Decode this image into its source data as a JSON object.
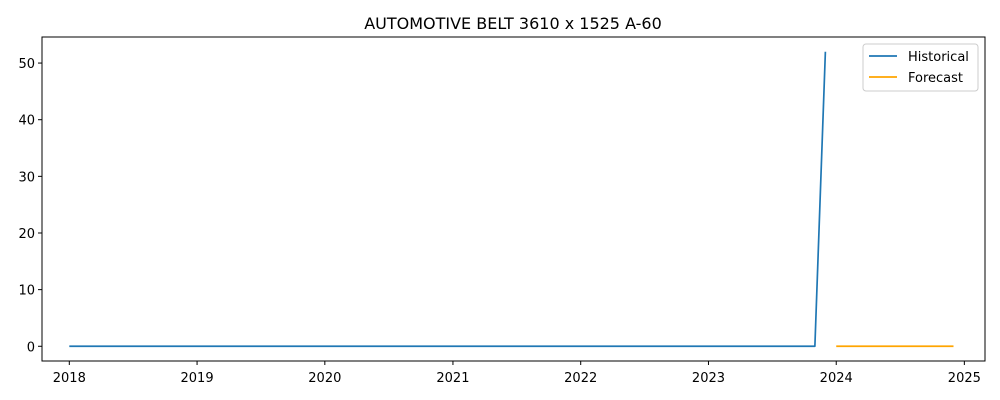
{
  "chart_data": {
    "type": "line",
    "title": "AUTOMOTIVE BELT 3610 x 1525 A-60",
    "xlabel": "",
    "ylabel": "",
    "xlim": [
      "2017-10-15",
      "2025-03-01"
    ],
    "ylim": [
      -2.6,
      54.6
    ],
    "x_ticks": [
      "2018-01-01",
      "2019-01-01",
      "2020-01-01",
      "2021-01-01",
      "2022-01-01",
      "2023-01-01",
      "2024-01-01",
      "2025-01-01"
    ],
    "x_tick_labels": [
      "2018",
      "2019",
      "2020",
      "2021",
      "2022",
      "2023",
      "2024",
      "2025"
    ],
    "y_ticks": [
      0,
      10,
      20,
      30,
      40,
      50
    ],
    "y_tick_labels": [
      "0",
      "10",
      "20",
      "30",
      "40",
      "50"
    ],
    "grid": false,
    "legend_position": "top-right",
    "series": [
      {
        "name": "Historical",
        "color": "#1f77b4",
        "points": [
          {
            "x": "2018-01-01",
            "y": 0
          },
          {
            "x": "2023-11-01",
            "y": 0
          },
          {
            "x": "2023-12-01",
            "y": 52
          }
        ]
      },
      {
        "name": "Forecast",
        "color": "#ffa500",
        "points": [
          {
            "x": "2024-01-01",
            "y": 0
          },
          {
            "x": "2024-12-01",
            "y": 0
          }
        ]
      }
    ]
  }
}
